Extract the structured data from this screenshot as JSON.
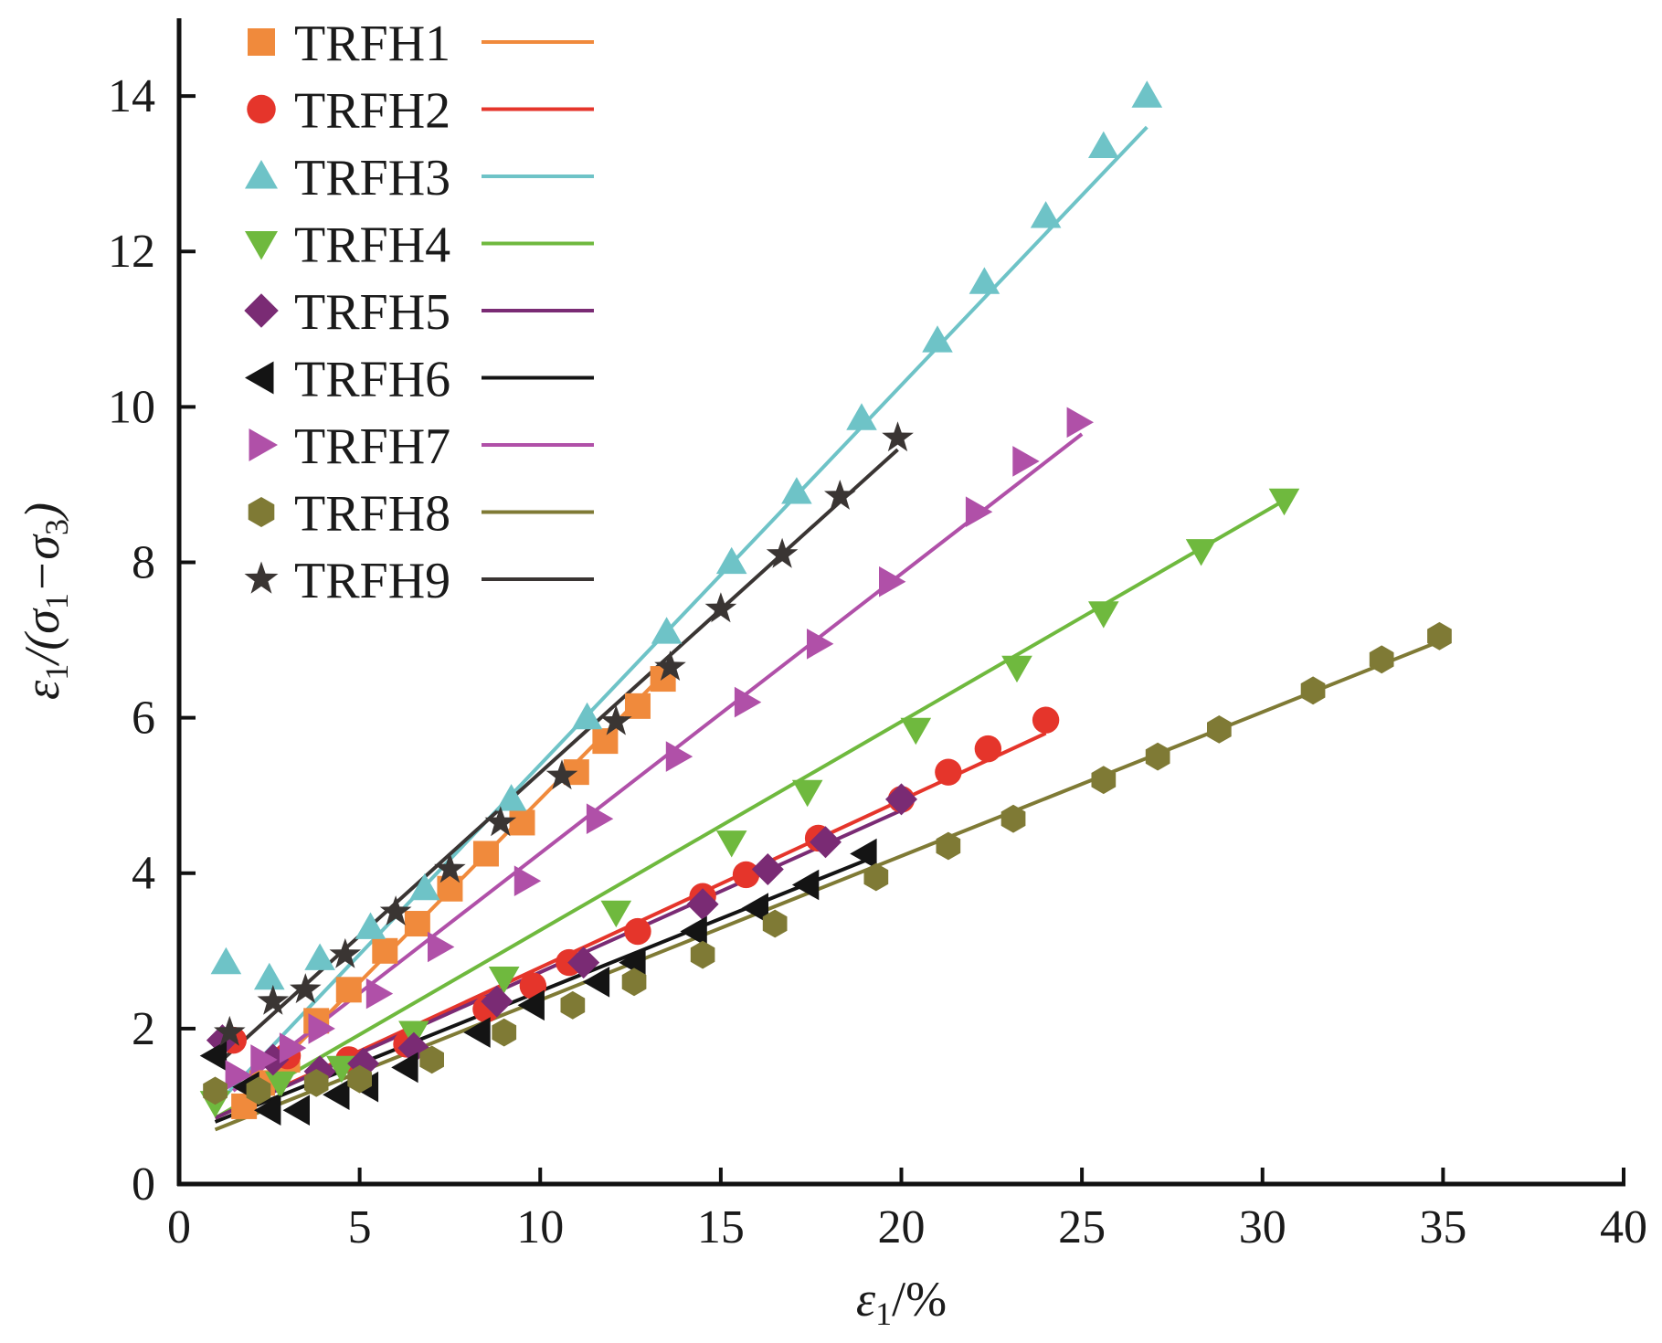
{
  "chart_data": {
    "type": "scatter",
    "xlabel_parts": [
      "ε",
      "1",
      "/%"
    ],
    "ylabel_parts": [
      "ε",
      "1",
      "/(σ",
      "1",
      "−σ",
      "3",
      ")"
    ],
    "xlim": [
      0,
      40
    ],
    "ylim": [
      0,
      15
    ],
    "xticks": [
      0,
      5,
      10,
      15,
      20,
      25,
      30,
      35,
      40
    ],
    "yticks": [
      0,
      2,
      4,
      6,
      8,
      10,
      12,
      14
    ],
    "grid": false,
    "legend_position": "top-left",
    "series": [
      {
        "name": "TRFH1",
        "marker": "square",
        "color": "#f08a3c",
        "points": [
          [
            1.8,
            1.0
          ],
          [
            2.3,
            1.3
          ],
          [
            3.0,
            1.6
          ],
          [
            3.8,
            2.1
          ],
          [
            4.7,
            2.5
          ],
          [
            5.7,
            3.0
          ],
          [
            6.6,
            3.35
          ],
          [
            7.5,
            3.8
          ],
          [
            8.5,
            4.25
          ],
          [
            9.5,
            4.65
          ],
          [
            11.0,
            5.3
          ],
          [
            11.8,
            5.7
          ],
          [
            12.7,
            6.15
          ],
          [
            13.4,
            6.5
          ]
        ],
        "fit": [
          [
            1.5,
            0.95
          ],
          [
            13.5,
            6.6
          ]
        ]
      },
      {
        "name": "TRFH2",
        "marker": "circle",
        "color": "#e5352b",
        "points": [
          [
            1.5,
            1.85
          ],
          [
            3.0,
            1.65
          ],
          [
            4.7,
            1.6
          ],
          [
            6.3,
            1.8
          ],
          [
            8.5,
            2.25
          ],
          [
            9.8,
            2.55
          ],
          [
            10.8,
            2.85
          ],
          [
            12.7,
            3.25
          ],
          [
            14.5,
            3.7
          ],
          [
            15.7,
            3.98
          ],
          [
            17.7,
            4.45
          ],
          [
            20.0,
            4.95
          ],
          [
            21.3,
            5.3
          ],
          [
            22.4,
            5.6
          ],
          [
            24.0,
            5.97
          ]
        ],
        "fit": [
          [
            1.0,
            0.85
          ],
          [
            24.0,
            5.8
          ]
        ]
      },
      {
        "name": "TRFH3",
        "marker": "triangle-up",
        "color": "#6ec3c7",
        "points": [
          [
            1.3,
            2.85
          ],
          [
            2.5,
            2.65
          ],
          [
            3.9,
            2.9
          ],
          [
            5.3,
            3.3
          ],
          [
            6.8,
            3.8
          ],
          [
            9.2,
            4.95
          ],
          [
            11.3,
            6.0
          ],
          [
            13.5,
            7.1
          ],
          [
            15.3,
            8.0
          ],
          [
            17.1,
            8.9
          ],
          [
            18.9,
            9.85
          ],
          [
            21.0,
            10.85
          ],
          [
            22.3,
            11.6
          ],
          [
            24.0,
            12.45
          ],
          [
            25.6,
            13.35
          ],
          [
            26.8,
            14.0
          ]
        ],
        "fit": [
          [
            1.2,
            1.1
          ],
          [
            26.8,
            13.6
          ]
        ]
      },
      {
        "name": "TRFH4",
        "marker": "triangle-down",
        "color": "#6fb93e",
        "points": [
          [
            1.0,
            1.05
          ],
          [
            2.8,
            1.3
          ],
          [
            4.5,
            1.5
          ],
          [
            6.5,
            1.95
          ],
          [
            9.0,
            2.65
          ],
          [
            12.1,
            3.5
          ],
          [
            15.3,
            4.4
          ],
          [
            17.4,
            5.05
          ],
          [
            20.4,
            5.85
          ],
          [
            23.2,
            6.65
          ],
          [
            25.6,
            7.35
          ],
          [
            28.3,
            8.15
          ],
          [
            30.6,
            8.8
          ]
        ],
        "fit": [
          [
            1.0,
            0.85
          ],
          [
            30.8,
            8.85
          ]
        ]
      },
      {
        "name": "TRFH5",
        "marker": "diamond",
        "color": "#7a2b74",
        "points": [
          [
            1.2,
            1.85
          ],
          [
            2.6,
            1.6
          ],
          [
            3.9,
            1.45
          ],
          [
            5.1,
            1.55
          ],
          [
            6.5,
            1.75
          ],
          [
            8.8,
            2.35
          ],
          [
            11.2,
            2.85
          ],
          [
            14.5,
            3.6
          ],
          [
            16.3,
            4.05
          ],
          [
            17.9,
            4.4
          ],
          [
            20.0,
            4.95
          ]
        ],
        "fit": [
          [
            1.0,
            0.85
          ],
          [
            20.2,
            4.85
          ]
        ]
      },
      {
        "name": "TRFH6",
        "marker": "triangle-left",
        "color": "#141414",
        "points": [
          [
            1.0,
            1.65
          ],
          [
            1.9,
            1.25
          ],
          [
            2.5,
            0.95
          ],
          [
            3.3,
            0.95
          ],
          [
            4.4,
            1.15
          ],
          [
            5.2,
            1.25
          ],
          [
            6.3,
            1.5
          ],
          [
            8.3,
            1.95
          ],
          [
            9.8,
            2.3
          ],
          [
            11.6,
            2.6
          ],
          [
            12.6,
            2.85
          ],
          [
            14.3,
            3.25
          ],
          [
            16.0,
            3.55
          ],
          [
            17.4,
            3.85
          ],
          [
            19.0,
            4.25
          ]
        ],
        "fit": [
          [
            1.0,
            0.8
          ],
          [
            19.2,
            4.2
          ]
        ]
      },
      {
        "name": "TRFH7",
        "marker": "triangle-right",
        "color": "#b050a8",
        "points": [
          [
            1.6,
            1.4
          ],
          [
            2.3,
            1.6
          ],
          [
            3.1,
            1.75
          ],
          [
            3.9,
            2.0
          ],
          [
            5.5,
            2.45
          ],
          [
            7.2,
            3.05
          ],
          [
            9.6,
            3.9
          ],
          [
            11.6,
            4.7
          ],
          [
            13.8,
            5.5
          ],
          [
            15.7,
            6.2
          ],
          [
            17.7,
            6.95
          ],
          [
            19.7,
            7.75
          ],
          [
            22.1,
            8.65
          ],
          [
            23.4,
            9.3
          ],
          [
            24.9,
            9.8
          ]
        ],
        "fit": [
          [
            1.5,
            1.2
          ],
          [
            25.0,
            9.65
          ]
        ]
      },
      {
        "name": "TRFH8",
        "marker": "hexagon",
        "color": "#7f7a35",
        "points": [
          [
            1.0,
            1.2
          ],
          [
            2.2,
            1.2
          ],
          [
            3.8,
            1.3
          ],
          [
            5.0,
            1.35
          ],
          [
            7.0,
            1.6
          ],
          [
            9.0,
            1.95
          ],
          [
            10.9,
            2.3
          ],
          [
            12.6,
            2.6
          ],
          [
            14.5,
            2.95
          ],
          [
            16.5,
            3.35
          ],
          [
            19.3,
            3.95
          ],
          [
            21.3,
            4.35
          ],
          [
            23.1,
            4.7
          ],
          [
            25.6,
            5.2
          ],
          [
            27.1,
            5.5
          ],
          [
            28.8,
            5.85
          ],
          [
            31.4,
            6.35
          ],
          [
            33.3,
            6.75
          ],
          [
            34.9,
            7.05
          ]
        ],
        "fit": [
          [
            1.0,
            0.7
          ],
          [
            35.0,
            7.0
          ]
        ]
      },
      {
        "name": "TRFH9",
        "marker": "star",
        "color": "#3a3533",
        "points": [
          [
            1.4,
            1.95
          ],
          [
            2.6,
            2.35
          ],
          [
            3.5,
            2.5
          ],
          [
            4.6,
            2.95
          ],
          [
            6.0,
            3.5
          ],
          [
            7.5,
            4.05
          ],
          [
            8.9,
            4.65
          ],
          [
            10.6,
            5.25
          ],
          [
            12.1,
            5.95
          ],
          [
            13.6,
            6.65
          ],
          [
            15.0,
            7.4
          ],
          [
            16.7,
            8.1
          ],
          [
            18.3,
            8.85
          ],
          [
            19.9,
            9.6
          ]
        ],
        "fit": [
          [
            1.2,
            1.6
          ],
          [
            19.9,
            9.45
          ]
        ]
      }
    ]
  }
}
